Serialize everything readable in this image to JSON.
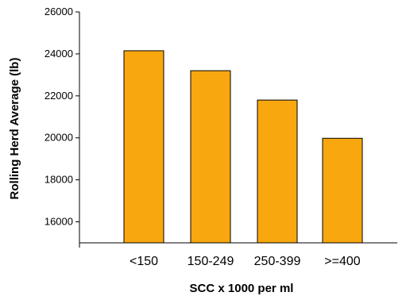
{
  "chart_data": {
    "type": "bar",
    "title": "",
    "xlabel": "SCC x 1000 per ml",
    "ylabel": "Rolling Herd Average (lb)",
    "categories": [
      "<150",
      "150-249",
      "250-399",
      ">=400"
    ],
    "values": [
      24150,
      23200,
      21800,
      19980
    ],
    "ylim": [
      15000,
      26000
    ],
    "yticks": [
      16000,
      18000,
      20000,
      22000,
      24000,
      26000
    ],
    "grid": false,
    "legend": "none",
    "bar_color": "#F9A70F",
    "bar_edge_color": "#000000"
  }
}
